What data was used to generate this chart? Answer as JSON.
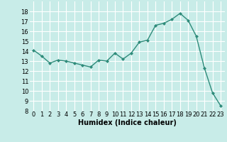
{
  "x": [
    0,
    1,
    2,
    3,
    4,
    5,
    6,
    7,
    8,
    9,
    10,
    11,
    12,
    13,
    14,
    15,
    16,
    17,
    18,
    19,
    20,
    21,
    22,
    23
  ],
  "y": [
    14.1,
    13.5,
    12.8,
    13.1,
    13.0,
    12.8,
    12.6,
    12.4,
    13.1,
    13.0,
    13.8,
    13.2,
    13.8,
    14.9,
    15.1,
    16.6,
    16.8,
    17.2,
    17.8,
    17.1,
    15.5,
    12.3,
    9.8,
    8.5
  ],
  "xlim": [
    -0.5,
    23.5
  ],
  "ylim": [
    8,
    19
  ],
  "yticks": [
    8,
    9,
    10,
    11,
    12,
    13,
    14,
    15,
    16,
    17,
    18
  ],
  "xticks": [
    0,
    1,
    2,
    3,
    4,
    5,
    6,
    7,
    8,
    9,
    10,
    11,
    12,
    13,
    14,
    15,
    16,
    17,
    18,
    19,
    20,
    21,
    22,
    23
  ],
  "xlabel": "Humidex (Indice chaleur)",
  "line_color": "#2e8b7a",
  "marker_color": "#2e8b7a",
  "bg_color": "#c8ece8",
  "grid_color": "#ffffff",
  "tick_fontsize": 6,
  "xlabel_fontsize": 7
}
